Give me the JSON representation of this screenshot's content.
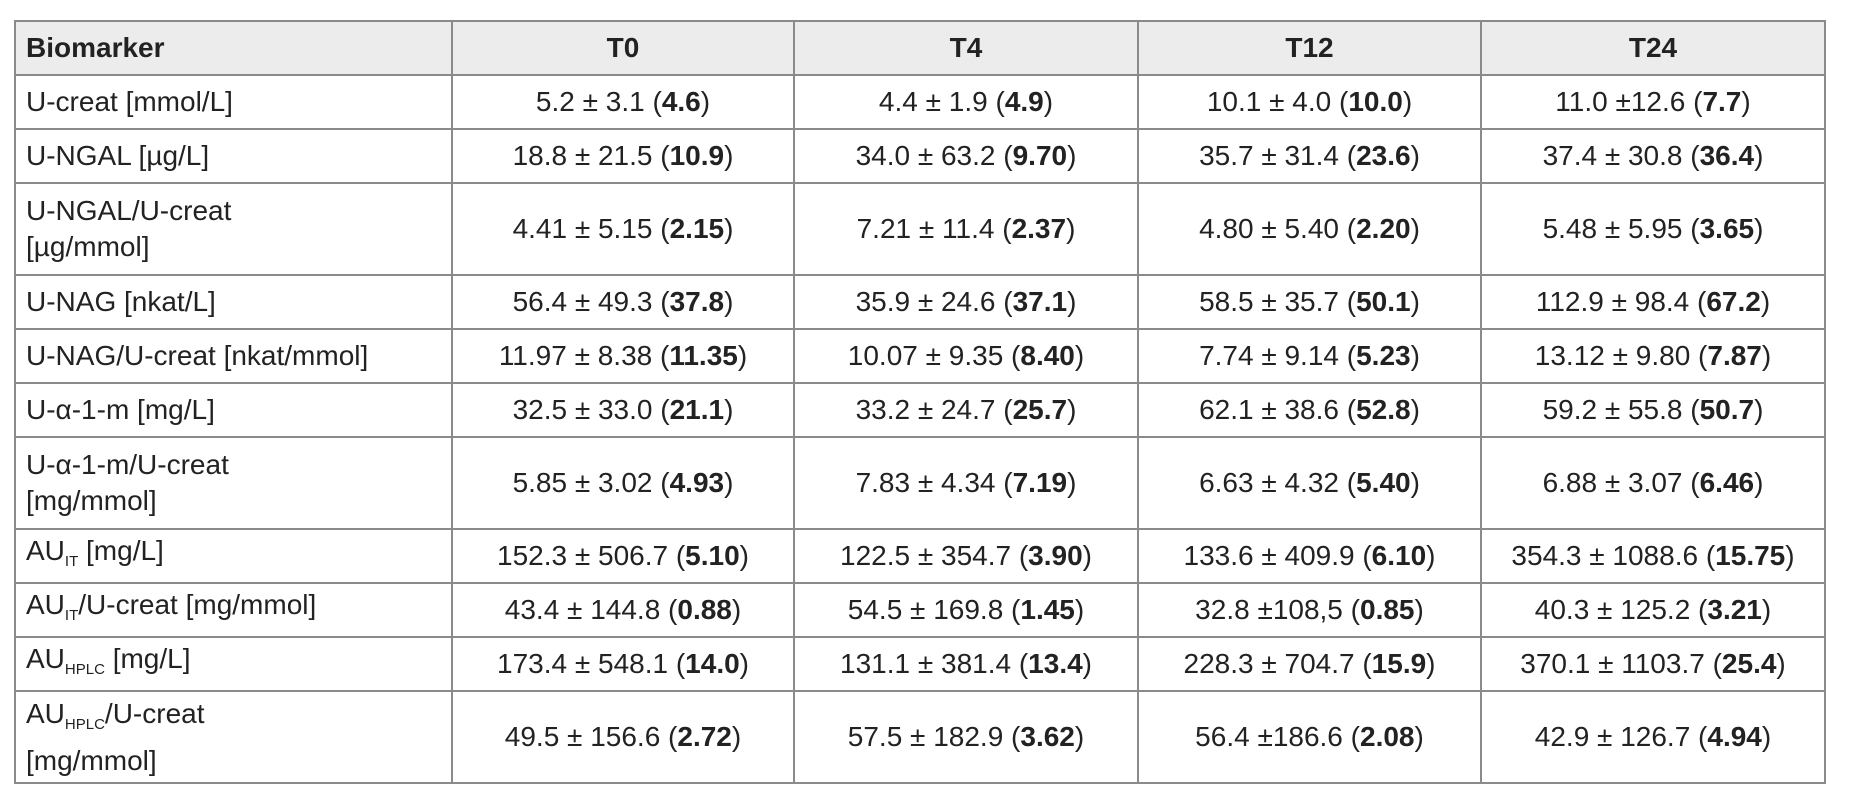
{
  "table": {
    "header": [
      "Biomarker",
      "T0",
      "T4",
      "T12",
      "T24"
    ],
    "rows": [
      {
        "label": [
          [
            {
              "text": "U-creat [mmol/L]"
            }
          ]
        ],
        "cells": [
          {
            "main": "5.2 ± 3.1 (",
            "bold": "4.6",
            "end": ")"
          },
          {
            "main": "4.4 ± 1.9 (",
            "bold": "4.9",
            "end": ")"
          },
          {
            "main": "10.1 ± 4.0 (",
            "bold": "10.0",
            "end": ")"
          },
          {
            "main": "11.0 ±12.6 (",
            "bold": "7.7",
            "end": ")"
          }
        ]
      },
      {
        "label": [
          [
            {
              "text": "U-NGAL [µg/L]"
            }
          ]
        ],
        "cells": [
          {
            "main": "18.8 ± 21.5 (",
            "bold": "10.9",
            "end": ")"
          },
          {
            "main": "34.0 ± 63.2 (",
            "bold": "9.70",
            "end": ")"
          },
          {
            "main": "35.7 ± 31.4 (",
            "bold": "23.6",
            "end": ")"
          },
          {
            "main": "37.4 ± 30.8 (",
            "bold": "36.4",
            "end": ")"
          }
        ]
      },
      {
        "label": [
          [
            {
              "text": "U-NGAL/U-creat"
            }
          ],
          [
            {
              "text": "[µg/mmol]"
            }
          ]
        ],
        "cells": [
          {
            "main": "4.41 ± 5.15 (",
            "bold": "2.15",
            "end": ")"
          },
          {
            "main": "7.21 ± 11.4 (",
            "bold": "2.37",
            "end": ")"
          },
          {
            "main": "4.80 ± 5.40 (",
            "bold": "2.20",
            "end": ")"
          },
          {
            "main": "5.48 ± 5.95 (",
            "bold": "3.65",
            "end": ")"
          }
        ]
      },
      {
        "label": [
          [
            {
              "text": "U-NAG [nkat/L]"
            }
          ]
        ],
        "cells": [
          {
            "main": "56.4 ± 49.3 (",
            "bold": "37.8",
            "end": ")"
          },
          {
            "main": "35.9 ± 24.6 (",
            "bold": "37.1",
            "end": ")"
          },
          {
            "main": "58.5 ± 35.7 (",
            "bold": "50.1",
            "end": ")"
          },
          {
            "main": "112.9 ± 98.4 (",
            "bold": "67.2",
            "end": ")"
          }
        ]
      },
      {
        "label": [
          [
            {
              "text": "U-NAG/U-creat [nkat/mmol]"
            }
          ]
        ],
        "cells": [
          {
            "main": "11.97 ± 8.38 (",
            "bold": "11.35",
            "end": ")"
          },
          {
            "main": "10.07 ± 9.35 (",
            "bold": "8.40",
            "end": ")"
          },
          {
            "main": "7.74 ± 9.14 (",
            "bold": "5.23",
            "end": ")"
          },
          {
            "main": "13.12 ± 9.80 (",
            "bold": "7.87",
            "end": ")"
          }
        ]
      },
      {
        "label": [
          [
            {
              "text": "U-α-1-m [mg/L]"
            }
          ]
        ],
        "cells": [
          {
            "main": "32.5 ± 33.0 (",
            "bold": "21.1",
            "end": ")"
          },
          {
            "main": "33.2 ± 24.7 (",
            "bold": "25.7",
            "end": ")"
          },
          {
            "main": "62.1 ± 38.6 (",
            "bold": "52.8",
            "end": ")"
          },
          {
            "main": "59.2 ± 55.8 (",
            "bold": "50.7",
            "end": ")"
          }
        ]
      },
      {
        "label": [
          [
            {
              "text": "U-α-1-m/U-creat"
            }
          ],
          [
            {
              "text": "[mg/mmol]"
            }
          ]
        ],
        "cells": [
          {
            "main": "5.85 ± 3.02 (",
            "bold": "4.93",
            "end": ")"
          },
          {
            "main": "7.83 ± 4.34 (",
            "bold": "7.19",
            "end": ")"
          },
          {
            "main": "6.63 ± 4.32 (",
            "bold": "5.40",
            "end": ")"
          },
          {
            "main": "6.88 ± 3.07 (",
            "bold": "6.46",
            "end": ")"
          }
        ]
      },
      {
        "label": [
          [
            {
              "text": "AU"
            },
            {
              "text": "IT",
              "style": "sub"
            },
            {
              "text": " [mg/L]"
            }
          ]
        ],
        "cells": [
          {
            "main": "152.3 ± 506.7 (",
            "bold": "5.10",
            "end": ")"
          },
          {
            "main": "122.5 ± 354.7 (",
            "bold": "3.90",
            "end": ")"
          },
          {
            "main": "133.6 ± 409.9 (",
            "bold": "6.10",
            "end": ")"
          },
          {
            "main": "354.3 ± 1088.6 (",
            "bold": "15.75",
            "end": ")"
          }
        ]
      },
      {
        "label": [
          [
            {
              "text": "AU"
            },
            {
              "text": "IT",
              "style": "sub"
            },
            {
              "text": "/U-creat [mg/mmol]"
            }
          ]
        ],
        "cells": [
          {
            "main": "43.4 ± 144.8 (",
            "bold": "0.88",
            "end": ")"
          },
          {
            "main": "54.5 ± 169.8 (",
            "bold": "1.45",
            "end": ")"
          },
          {
            "main": "32.8 ±108,5 (",
            "bold": "0.85",
            "end": ")"
          },
          {
            "main": "40.3 ± 125.2 (",
            "bold": "3.21",
            "end": ")"
          }
        ]
      },
      {
        "label": [
          [
            {
              "text": "AU"
            },
            {
              "text": "HPLC",
              "style": "sub"
            },
            {
              "text": " [mg/L]"
            }
          ]
        ],
        "cells": [
          {
            "main": "173.4 ± 548.1 (",
            "bold": "14.0",
            "end": ")"
          },
          {
            "main": "131.1 ± 381.4 (",
            "bold": "13.4",
            "end": ")"
          },
          {
            "main": "228.3 ± 704.7 (",
            "bold": "15.9",
            "end": ")"
          },
          {
            "main": "370.1 ± 1103.7 (",
            "bold": "25.4",
            "end": ")"
          }
        ]
      },
      {
        "label": [
          [
            {
              "text": "AU"
            },
            {
              "text": "HPLC",
              "style": "sub"
            },
            {
              "text": "/U-creat"
            }
          ],
          [
            {
              "text": "[mg/mmol]"
            }
          ]
        ],
        "cells": [
          {
            "main": "49.5 ± 156.6 (",
            "bold": "2.72",
            "end": ")"
          },
          {
            "main": "57.5 ± 182.9 (",
            "bold": "3.62",
            "end": ")"
          },
          {
            "main": "56.4 ±186.6 (",
            "bold": "2.08",
            "end": ")"
          },
          {
            "main": "42.9 ± 126.7 (",
            "bold": "4.94",
            "end": ")"
          }
        ]
      }
    ]
  }
}
